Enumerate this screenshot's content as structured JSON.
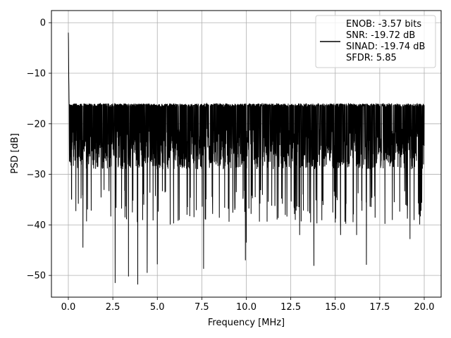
{
  "chart_data": {
    "type": "line",
    "title": "",
    "xlabel": "Frequency [MHz]",
    "ylabel": "PSD [dB]",
    "xlim": [
      -0.95,
      20.95
    ],
    "ylim": [
      -54.3,
      2.4
    ],
    "x_ticks": [
      0.0,
      2.5,
      5.0,
      7.5,
      10.0,
      12.5,
      15.0,
      17.5,
      20.0
    ],
    "x_tick_labels": [
      "0.0",
      "2.5",
      "5.0",
      "7.5",
      "10.0",
      "12.5",
      "15.0",
      "17.5",
      "20.0"
    ],
    "y_ticks": [
      0,
      -10,
      -20,
      -30,
      -40,
      -50
    ],
    "y_tick_labels": [
      "0",
      "−10",
      "−20",
      "−30",
      "−40",
      "−50"
    ],
    "grid": true,
    "legend_position": "top-right",
    "series": [
      {
        "color": "#000000",
        "legend_lines": [
          "ENOB: -3.57 bits",
          "SNR: -19.72 dB",
          "SINAD: -19.74 dB",
          "SFDR: 5.85"
        ],
        "x_range": [
          0,
          20
        ],
        "peak": {
          "x": 0.0,
          "y": 0.0
        },
        "typical_band": [
          -29,
          -13
        ],
        "envelope_top": -10,
        "notable_dips": [
          {
            "x": 2.63,
            "y": -51.5
          },
          {
            "x": 3.9,
            "y": -51.8
          },
          {
            "x": 3.38,
            "y": -50.2
          },
          {
            "x": 4.43,
            "y": -49.5
          },
          {
            "x": 5.0,
            "y": -47.8
          },
          {
            "x": 7.6,
            "y": -48.7
          },
          {
            "x": 9.95,
            "y": -47.0
          },
          {
            "x": 13.8,
            "y": -48.1
          },
          {
            "x": 16.75,
            "y": -47.9
          },
          {
            "x": 0.82,
            "y": -44.5
          },
          {
            "x": 10.0,
            "y": -43.5
          },
          {
            "x": 13.0,
            "y": -42.0
          },
          {
            "x": 15.3,
            "y": -42.0
          },
          {
            "x": 16.2,
            "y": -42.0
          },
          {
            "x": 19.2,
            "y": -42.8
          }
        ]
      }
    ]
  }
}
